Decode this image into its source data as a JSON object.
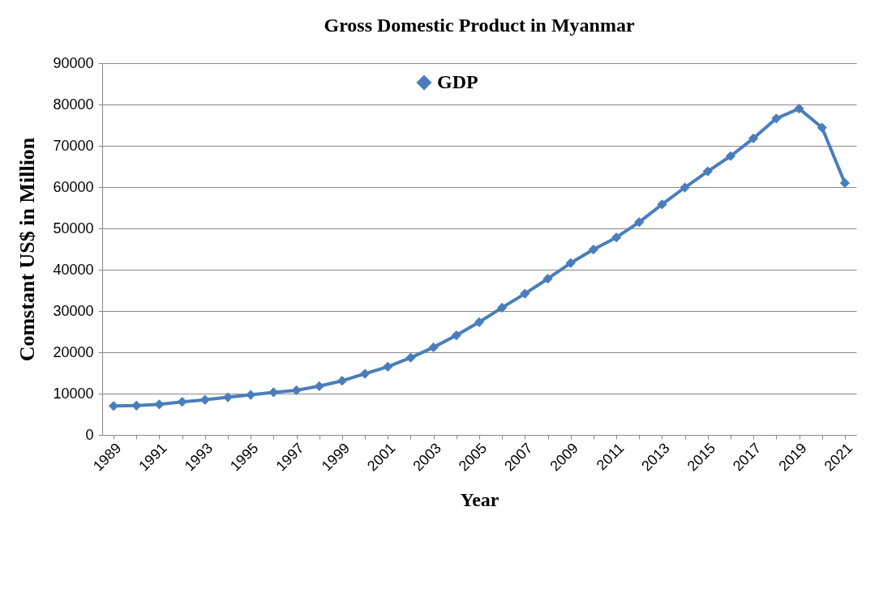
{
  "chart_data": {
    "type": "line",
    "title": "Gross Domestic Product in Myanmar",
    "xlabel": "Year",
    "ylabel": "Comstant US$ in Million",
    "categories": [
      "1989",
      null,
      "1991",
      null,
      "1993",
      null,
      "1995",
      null,
      "1997",
      null,
      "1999",
      null,
      "2001",
      null,
      "2003",
      null,
      "2005",
      null,
      "2007",
      null,
      "2009",
      null,
      "2011",
      null,
      "2013",
      null,
      "2015",
      null,
      "2017",
      null,
      "2019",
      null,
      "2021"
    ],
    "series": [
      {
        "name": "GDP",
        "color": "#4a7ebb",
        "values": [
          7000,
          7100,
          7400,
          8000,
          8500,
          9100,
          9700,
          10300,
          10800,
          11800,
          13100,
          14800,
          16500,
          18700,
          21200,
          24100,
          27300,
          30800,
          34200,
          37800,
          41600,
          44900,
          47800,
          51500,
          55800,
          59900,
          63800,
          67500,
          71800,
          76600,
          79000,
          74400,
          61000
        ]
      }
    ],
    "ylim": [
      0,
      90000
    ],
    "yticks": [
      0,
      10000,
      20000,
      30000,
      40000,
      50000,
      60000,
      70000,
      80000,
      90000
    ],
    "grid": "y",
    "legend": "top",
    "marker": "diamond",
    "line_style": "solid"
  }
}
